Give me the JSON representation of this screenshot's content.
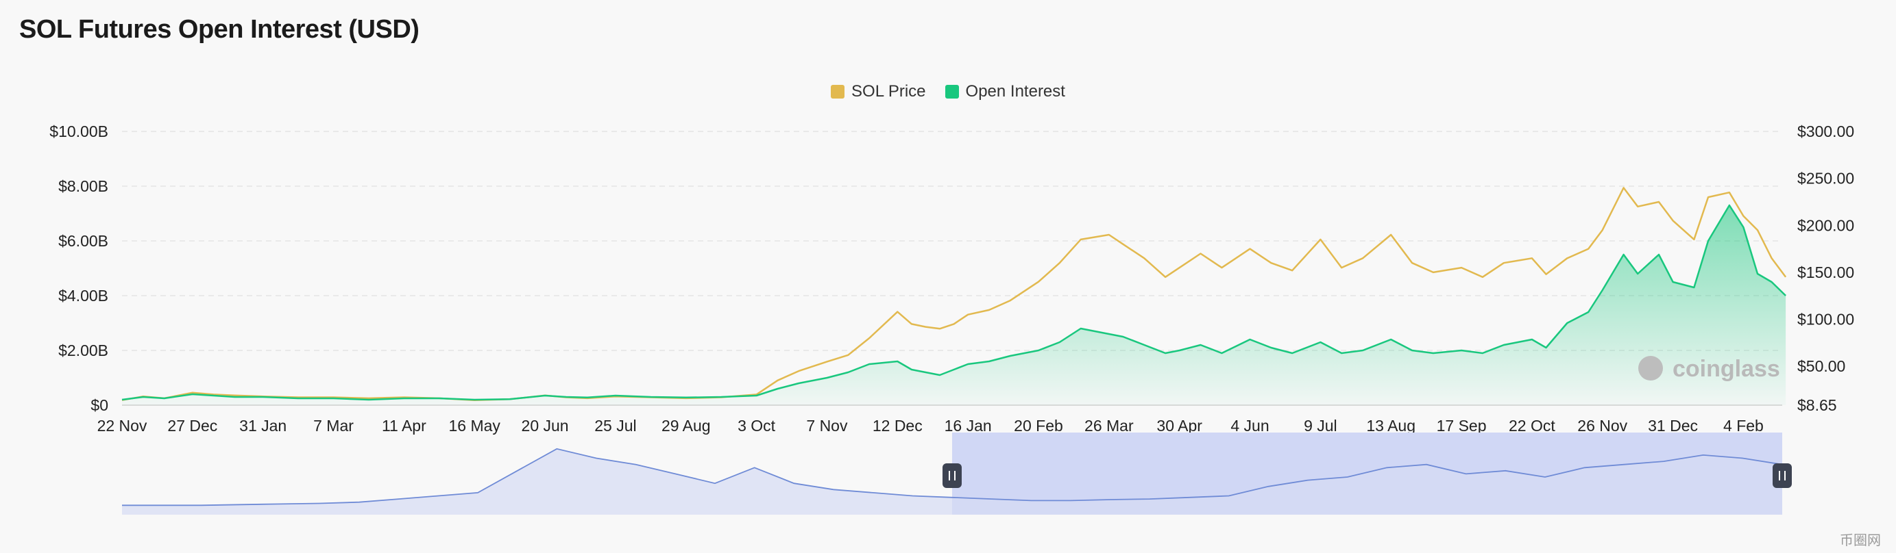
{
  "title": "SOL Futures Open Interest (USD)",
  "legend": {
    "items": [
      {
        "label": "SOL Price",
        "color": "#e2b94f"
      },
      {
        "label": "Open Interest",
        "color": "#19c77e"
      }
    ]
  },
  "watermark": "coinglass",
  "corner_logo": "币圈网",
  "colors": {
    "price": "#e2b94f",
    "oi": "#19c77e",
    "navigator_line": "#6f8bd6",
    "navigator_fill": "#d5dcf4",
    "navigator_selection": "#d0d7f5",
    "grid": "#e4e4e4"
  },
  "chart_data": {
    "type": "line",
    "categories": [
      "22 Nov",
      "27 Dec",
      "31 Jan",
      "7 Mar",
      "11 Apr",
      "16 May",
      "20 Jun",
      "25 Jul",
      "29 Aug",
      "3 Oct",
      "7 Nov",
      "12 Dec",
      "16 Jan",
      "20 Feb",
      "26 Mar",
      "30 Apr",
      "4 Jun",
      "9 Jul",
      "13 Aug",
      "17 Sep",
      "22 Oct",
      "26 Nov",
      "31 Dec",
      "4 Feb"
    ],
    "y_left": {
      "ticks": [
        "$0",
        "$2.00B",
        "$4.00B",
        "$6.00B",
        "$8.00B",
        "$10.00B"
      ],
      "range": [
        0,
        10
      ]
    },
    "y_right": {
      "ticks": [
        "$8.65",
        "$50.00",
        "$100.00",
        "$150.00",
        "$200.00",
        "$250.00",
        "$300.00"
      ],
      "range": [
        8.65,
        300
      ]
    },
    "grid": true,
    "legend_position": "top-center",
    "series": [
      {
        "name": "SOL Price",
        "axis": "right",
        "x": [
          0,
          0.3,
          0.6,
          1,
          1.3,
          1.6,
          2,
          2.5,
          3,
          3.5,
          4,
          4.5,
          5,
          5.5,
          6,
          6.3,
          6.6,
          7,
          7.5,
          8,
          8.5,
          9,
          9.3,
          9.6,
          10,
          10.3,
          10.6,
          11,
          11.2,
          11.4,
          11.6,
          11.8,
          12,
          12.3,
          12.6,
          13,
          13.3,
          13.6,
          14,
          14.2,
          14.5,
          14.8,
          15,
          15.3,
          15.6,
          16,
          16.3,
          16.6,
          17,
          17.3,
          17.6,
          18,
          18.3,
          18.6,
          19,
          19.3,
          19.6,
          20,
          20.2,
          20.5,
          20.8,
          21,
          21.3,
          21.5,
          21.8,
          22,
          22.3,
          22.5,
          22.8,
          23,
          23.2,
          23.4,
          23.6
        ],
        "values": [
          14,
          18,
          16,
          22,
          20,
          19,
          18,
          17,
          17,
          16,
          17,
          16,
          14,
          15,
          19,
          17,
          16,
          18,
          17,
          16,
          17,
          20,
          35,
          45,
          55,
          62,
          80,
          108,
          95,
          92,
          90,
          95,
          105,
          110,
          120,
          140,
          160,
          185,
          190,
          180,
          165,
          145,
          155,
          170,
          155,
          175,
          160,
          152,
          185,
          155,
          165,
          190,
          160,
          150,
          155,
          145,
          160,
          165,
          148,
          165,
          175,
          195,
          240,
          220,
          225,
          205,
          185,
          230,
          235,
          210,
          195,
          165,
          145
        ]
      },
      {
        "name": "Open Interest",
        "axis": "left",
        "x": [
          0,
          0.3,
          0.6,
          1,
          1.3,
          1.6,
          2,
          2.5,
          3,
          3.5,
          4,
          4.5,
          5,
          5.5,
          6,
          6.3,
          6.6,
          7,
          7.5,
          8,
          8.5,
          9,
          9.3,
          9.6,
          10,
          10.3,
          10.6,
          11,
          11.2,
          11.4,
          11.6,
          11.8,
          12,
          12.3,
          12.6,
          13,
          13.3,
          13.6,
          14,
          14.2,
          14.5,
          14.8,
          15,
          15.3,
          15.6,
          16,
          16.3,
          16.6,
          17,
          17.3,
          17.6,
          18,
          18.3,
          18.6,
          19,
          19.3,
          19.6,
          20,
          20.2,
          20.5,
          20.8,
          21,
          21.3,
          21.5,
          21.8,
          22,
          22.3,
          22.5,
          22.8,
          23,
          23.2,
          23.4,
          23.6
        ],
        "values": [
          0.2,
          0.3,
          0.25,
          0.4,
          0.35,
          0.3,
          0.3,
          0.25,
          0.25,
          0.2,
          0.25,
          0.25,
          0.2,
          0.22,
          0.35,
          0.3,
          0.28,
          0.35,
          0.3,
          0.28,
          0.3,
          0.35,
          0.6,
          0.8,
          1.0,
          1.2,
          1.5,
          1.6,
          1.3,
          1.2,
          1.1,
          1.3,
          1.5,
          1.6,
          1.8,
          2.0,
          2.3,
          2.8,
          2.6,
          2.5,
          2.2,
          1.9,
          2.0,
          2.2,
          1.9,
          2.4,
          2.1,
          1.9,
          2.3,
          1.9,
          2.0,
          2.4,
          2.0,
          1.9,
          2.0,
          1.9,
          2.2,
          2.4,
          2.1,
          3.0,
          3.4,
          4.2,
          5.5,
          4.8,
          5.5,
          4.5,
          4.3,
          6.0,
          7.3,
          6.5,
          4.8,
          4.5,
          4.0
        ]
      }
    ],
    "navigator": {
      "values": [
        0.3,
        0.3,
        0.3,
        0.32,
        0.34,
        0.36,
        0.4,
        0.5,
        0.6,
        0.7,
        1.4,
        2.1,
        1.8,
        1.6,
        1.3,
        1.0,
        1.5,
        1.0,
        0.8,
        0.7,
        0.6,
        0.55,
        0.5,
        0.45,
        0.45,
        0.48,
        0.5,
        0.55,
        0.6,
        0.9,
        1.1,
        1.2,
        1.5,
        1.6,
        1.3,
        1.4,
        1.2,
        1.5,
        1.6,
        1.7,
        1.9,
        1.8,
        1.6
      ],
      "selection_start": 0.5,
      "selection_end": 1.0
    }
  }
}
